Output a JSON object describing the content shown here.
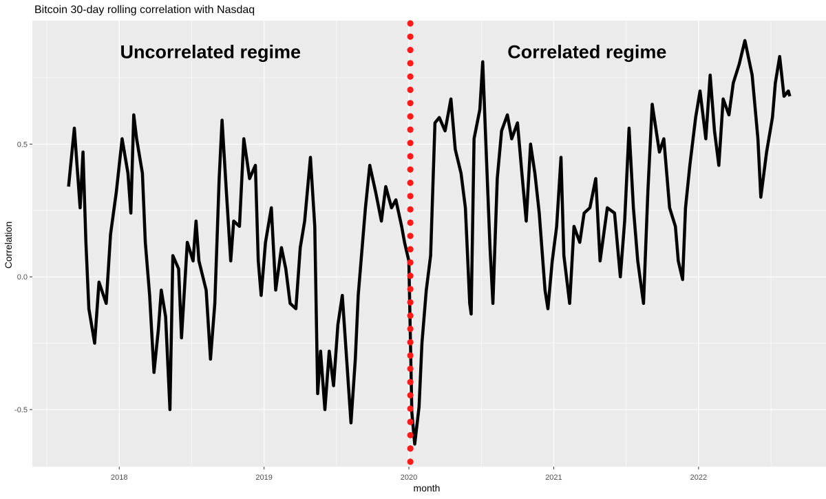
{
  "chart_data": {
    "type": "line",
    "title": "Bitcoin 30-day rolling correlation with Nasdaq",
    "xlabel": "month",
    "ylabel": "Correlation",
    "xlim": [
      2017.4,
      2022.88
    ],
    "ylim": [
      -0.715,
      0.965
    ],
    "x_ticks": [
      2018,
      2019,
      2020,
      2021,
      2022
    ],
    "x_tick_labels": [
      "2018",
      "2019",
      "2020",
      "2021",
      "2022"
    ],
    "y_ticks": [
      -0.5,
      0.0,
      0.5
    ],
    "y_tick_labels": [
      "-0.5",
      "0.0",
      "0.5"
    ],
    "grid": true,
    "line_color": "#000000",
    "background": "#ebebeb",
    "vline": {
      "x": 2020.01,
      "color": "#ff1a1a",
      "style": "dotted"
    },
    "annotations": [
      {
        "text": "Uncorrelated regime",
        "x": 2018.63,
        "y": 0.85
      },
      {
        "text": "Correlated regime",
        "x": 2021.23,
        "y": 0.85
      }
    ],
    "series": [
      {
        "name": "Correlation",
        "x": [
          2017.65,
          2017.69,
          2017.73,
          2017.75,
          2017.77,
          2017.79,
          2017.83,
          2017.86,
          2017.91,
          2017.94,
          2017.98,
          2018.02,
          2018.06,
          2018.08,
          2018.1,
          2018.12,
          2018.16,
          2018.18,
          2018.21,
          2018.24,
          2018.27,
          2018.29,
          2018.32,
          2018.35,
          2018.37,
          2018.41,
          2018.43,
          2018.47,
          2018.51,
          2018.53,
          2018.55,
          2018.6,
          2018.63,
          2018.66,
          2018.69,
          2018.71,
          2018.74,
          2018.77,
          2018.79,
          2018.83,
          2018.86,
          2018.9,
          2018.94,
          2018.96,
          2018.98,
          2019.01,
          2019.05,
          2019.08,
          2019.12,
          2019.15,
          2019.18,
          2019.22,
          2019.25,
          2019.28,
          2019.32,
          2019.35,
          2019.37,
          2019.39,
          2019.42,
          2019.45,
          2019.48,
          2019.51,
          2019.54,
          2019.57,
          2019.6,
          2019.63,
          2019.65,
          2019.7,
          2019.73,
          2019.77,
          2019.81,
          2019.84,
          2019.88,
          2019.91,
          2019.95,
          2019.97,
          2020.0,
          2020.02,
          2020.04,
          2020.07,
          2020.09,
          2020.12,
          2020.15,
          2020.18,
          2020.21,
          2020.25,
          2020.29,
          2020.32,
          2020.36,
          2020.39,
          2020.42,
          2020.43,
          2020.45,
          2020.49,
          2020.51,
          2020.53,
          2020.56,
          2020.58,
          2020.61,
          2020.64,
          2020.68,
          2020.71,
          2020.75,
          2020.78,
          2020.81,
          2020.84,
          2020.87,
          2020.9,
          2020.94,
          2020.96,
          2020.99,
          2021.02,
          2021.05,
          2021.07,
          2021.11,
          2021.14,
          2021.18,
          2021.21,
          2021.25,
          2021.29,
          2021.32,
          2021.37,
          2021.42,
          2021.46,
          2021.49,
          2021.52,
          2021.55,
          2021.58,
          2021.62,
          2021.65,
          2021.68,
          2021.73,
          2021.76,
          2021.8,
          2021.84,
          2021.86,
          2021.89,
          2021.91,
          2021.94,
          2021.98,
          2022.01,
          2022.05,
          2022.08,
          2022.11,
          2022.14,
          2022.17,
          2022.21,
          2022.24,
          2022.28,
          2022.32,
          2022.37,
          2022.41,
          2022.43,
          2022.47,
          2022.51,
          2022.53,
          2022.56,
          2022.59,
          2022.62,
          2022.63
        ],
        "y": [
          0.34,
          0.56,
          0.26,
          0.47,
          0.13,
          -0.12,
          -0.25,
          -0.02,
          -0.1,
          0.16,
          0.32,
          0.52,
          0.39,
          0.24,
          0.61,
          0.52,
          0.39,
          0.13,
          -0.07,
          -0.36,
          -0.2,
          -0.05,
          -0.15,
          -0.5,
          0.08,
          0.03,
          -0.23,
          0.13,
          0.06,
          0.21,
          0.06,
          -0.05,
          -0.31,
          -0.1,
          0.37,
          0.59,
          0.32,
          0.06,
          0.21,
          0.19,
          0.52,
          0.37,
          0.42,
          0.06,
          -0.07,
          0.13,
          0.26,
          -0.05,
          0.11,
          0.03,
          -0.1,
          -0.12,
          0.11,
          0.21,
          0.45,
          0.19,
          -0.44,
          -0.28,
          -0.5,
          -0.28,
          -0.41,
          -0.18,
          -0.07,
          -0.31,
          -0.55,
          -0.31,
          -0.07,
          0.26,
          0.42,
          0.32,
          0.21,
          0.34,
          0.26,
          0.29,
          0.19,
          0.13,
          0.06,
          -0.51,
          -0.63,
          -0.49,
          -0.25,
          -0.05,
          0.08,
          0.58,
          0.6,
          0.55,
          0.67,
          0.48,
          0.39,
          0.26,
          -0.1,
          -0.14,
          0.52,
          0.63,
          0.81,
          0.52,
          0.11,
          -0.1,
          0.37,
          0.55,
          0.61,
          0.52,
          0.58,
          0.39,
          0.21,
          0.5,
          0.39,
          0.24,
          -0.05,
          -0.12,
          0.06,
          0.19,
          0.45,
          0.08,
          -0.1,
          0.19,
          0.13,
          0.24,
          0.26,
          0.37,
          0.06,
          0.26,
          0.24,
          0.0,
          0.21,
          0.56,
          0.26,
          0.06,
          -0.1,
          0.32,
          0.65,
          0.47,
          0.52,
          0.26,
          0.19,
          0.06,
          -0.01,
          0.26,
          0.42,
          0.6,
          0.7,
          0.52,
          0.76,
          0.55,
          0.42,
          0.67,
          0.61,
          0.73,
          0.8,
          0.89,
          0.76,
          0.52,
          0.3,
          0.47,
          0.6,
          0.73,
          0.83,
          0.68,
          0.7,
          0.68
        ]
      }
    ]
  }
}
